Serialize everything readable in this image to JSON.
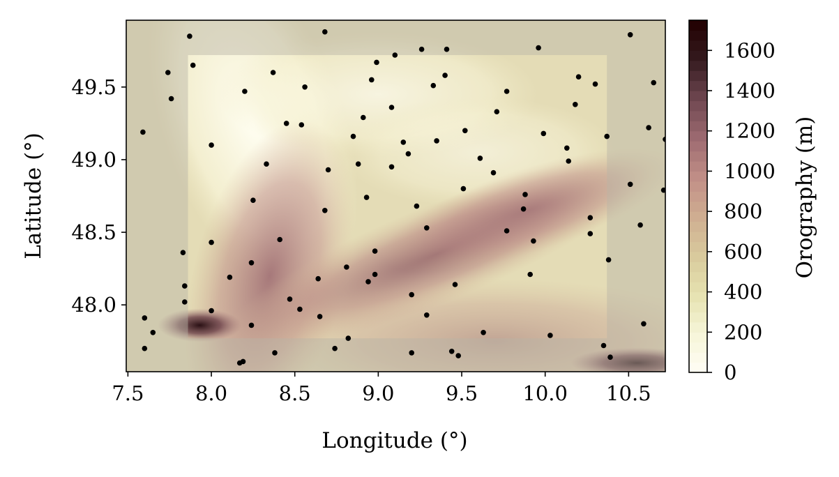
{
  "chart_data": {
    "type": "scatter",
    "title": "",
    "xlabel": "Longitude (°)",
    "ylabel": "Latitude (°)",
    "xlim": [
      7.49,
      10.72
    ],
    "ylim": [
      47.54,
      49.96
    ],
    "xticks": [
      7.5,
      8.0,
      8.5,
      9.0,
      9.5,
      10.0,
      10.5
    ],
    "xtick_labels": [
      "7.5",
      "8.0",
      "8.5",
      "9.0",
      "9.5",
      "10.0",
      "10.5"
    ],
    "yticks": [
      48.0,
      48.5,
      49.0,
      49.5
    ],
    "ytick_labels": [
      "48.0",
      "48.5",
      "49.0",
      "49.5"
    ],
    "grid": false,
    "background": "orography map (terrain elevation)",
    "highlight_region": {
      "lon_range": [
        7.86,
        10.37
      ],
      "lat_range": [
        47.77,
        49.72
      ]
    },
    "colorbar": {
      "label": "Orography (m)",
      "min": 0,
      "max": 1750,
      "ticks": [
        0,
        200,
        400,
        600,
        800,
        1000,
        1200,
        1400,
        1600
      ],
      "tick_labels": [
        "0",
        "200",
        "400",
        "600",
        "800",
        "1000",
        "1200",
        "1400",
        "1600"
      ],
      "colors": [
        "#fffdf5",
        "#f6f5d8",
        "#e6e2b0",
        "#d8c99c",
        "#cfad91",
        "#c08d86",
        "#9c6a70",
        "#6e4650",
        "#341a1e",
        "#220000"
      ]
    },
    "point_color": "#000000",
    "points": [
      [
        7.87,
        49.85
      ],
      [
        8.68,
        49.88
      ],
      [
        10.51,
        49.86
      ],
      [
        7.89,
        49.65
      ],
      [
        7.74,
        49.6
      ],
      [
        8.37,
        49.6
      ],
      [
        9.26,
        49.76
      ],
      [
        9.41,
        49.76
      ],
      [
        9.96,
        49.77
      ],
      [
        9.1,
        49.72
      ],
      [
        8.99,
        49.67
      ],
      [
        7.76,
        49.42
      ],
      [
        8.2,
        49.47
      ],
      [
        8.56,
        49.5
      ],
      [
        8.96,
        49.55
      ],
      [
        9.33,
        49.51
      ],
      [
        9.4,
        49.58
      ],
      [
        10.2,
        49.57
      ],
      [
        10.3,
        49.52
      ],
      [
        10.65,
        49.53
      ],
      [
        9.77,
        49.47
      ],
      [
        10.18,
        49.38
      ],
      [
        9.08,
        49.36
      ],
      [
        9.71,
        49.33
      ],
      [
        8.91,
        49.29
      ],
      [
        8.45,
        49.25
      ],
      [
        8.54,
        49.24
      ],
      [
        10.62,
        49.22
      ],
      [
        7.59,
        49.19
      ],
      [
        8.0,
        49.1
      ],
      [
        8.85,
        49.16
      ],
      [
        9.15,
        49.12
      ],
      [
        9.35,
        49.13
      ],
      [
        9.52,
        49.2
      ],
      [
        9.99,
        49.18
      ],
      [
        10.37,
        49.16
      ],
      [
        10.72,
        49.14
      ],
      [
        10.13,
        49.08
      ],
      [
        9.18,
        49.04
      ],
      [
        9.61,
        49.01
      ],
      [
        10.14,
        48.99
      ],
      [
        8.33,
        48.97
      ],
      [
        8.88,
        48.97
      ],
      [
        9.08,
        48.95
      ],
      [
        8.7,
        48.93
      ],
      [
        9.69,
        48.91
      ],
      [
        10.51,
        48.83
      ],
      [
        10.71,
        48.79
      ],
      [
        9.51,
        48.8
      ],
      [
        9.88,
        48.76
      ],
      [
        8.93,
        48.74
      ],
      [
        8.25,
        48.72
      ],
      [
        9.23,
        48.68
      ],
      [
        9.87,
        48.66
      ],
      [
        8.68,
        48.65
      ],
      [
        10.27,
        48.6
      ],
      [
        10.57,
        48.55
      ],
      [
        9.29,
        48.53
      ],
      [
        9.77,
        48.51
      ],
      [
        10.27,
        48.49
      ],
      [
        8.41,
        48.45
      ],
      [
        9.93,
        48.44
      ],
      [
        8.0,
        48.43
      ],
      [
        7.83,
        48.36
      ],
      [
        8.98,
        48.37
      ],
      [
        10.38,
        48.31
      ],
      [
        8.24,
        48.29
      ],
      [
        8.81,
        48.26
      ],
      [
        8.98,
        48.21
      ],
      [
        9.91,
        48.21
      ],
      [
        8.11,
        48.19
      ],
      [
        8.64,
        48.18
      ],
      [
        8.94,
        48.16
      ],
      [
        9.46,
        48.14
      ],
      [
        7.84,
        48.13
      ],
      [
        9.2,
        48.07
      ],
      [
        8.47,
        48.04
      ],
      [
        7.84,
        48.02
      ],
      [
        8.53,
        47.97
      ],
      [
        8.0,
        47.96
      ],
      [
        9.29,
        47.93
      ],
      [
        8.65,
        47.92
      ],
      [
        7.6,
        47.91
      ],
      [
        10.59,
        47.87
      ],
      [
        8.24,
        47.86
      ],
      [
        7.65,
        47.81
      ],
      [
        9.63,
        47.81
      ],
      [
        10.03,
        47.79
      ],
      [
        8.82,
        47.77
      ],
      [
        7.6,
        47.7
      ],
      [
        8.74,
        47.7
      ],
      [
        10.35,
        47.72
      ],
      [
        9.2,
        47.67
      ],
      [
        8.38,
        47.67
      ],
      [
        9.44,
        47.68
      ],
      [
        9.48,
        47.65
      ],
      [
        10.39,
        47.64
      ],
      [
        8.17,
        47.6
      ],
      [
        8.19,
        47.61
      ]
    ]
  }
}
